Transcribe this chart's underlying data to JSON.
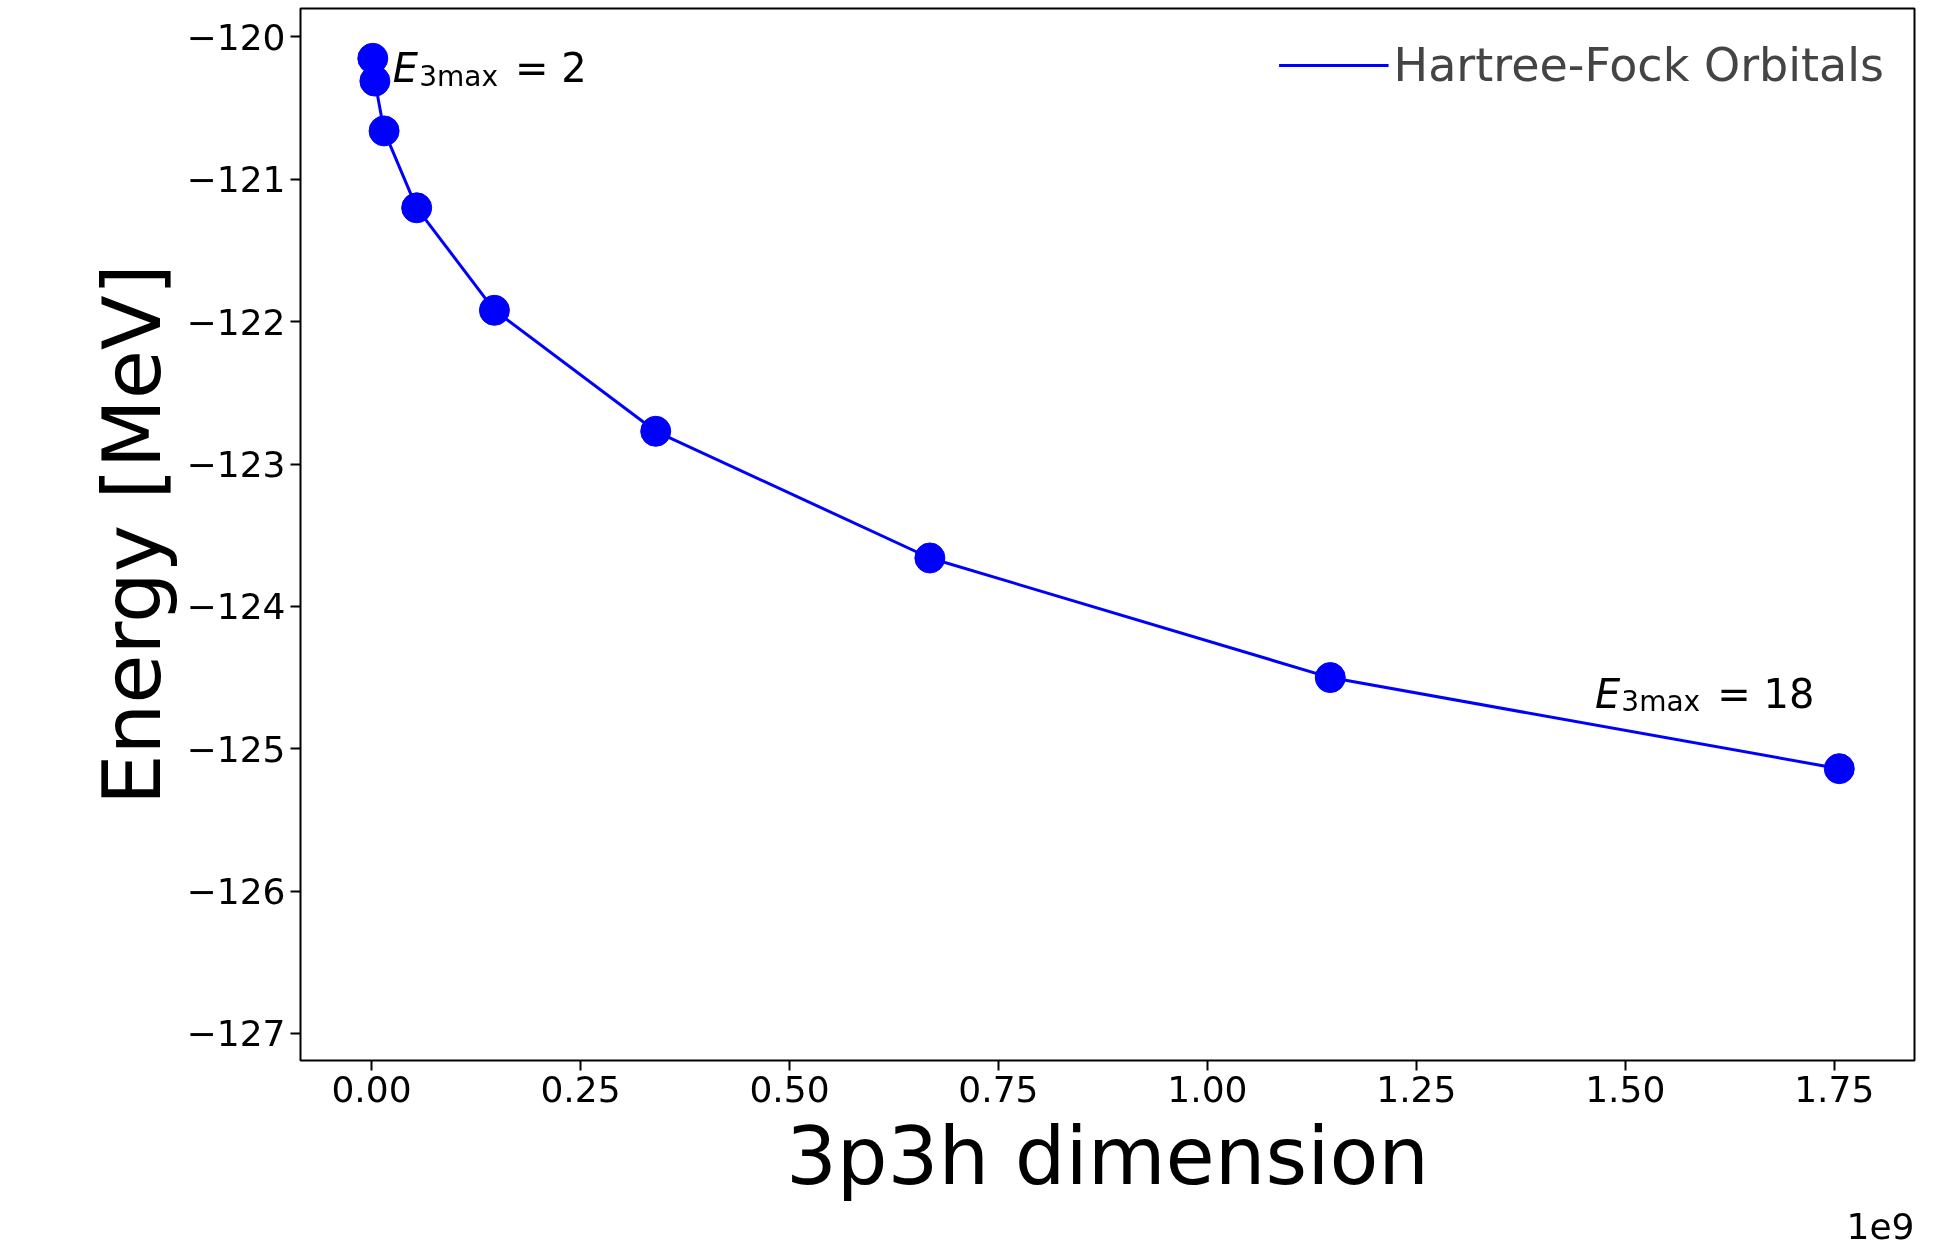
{
  "chart_data": {
    "type": "line",
    "xlabel": "3p3h dimension",
    "ylabel": "Energy [MeV]",
    "x": [
      0.0015,
      0.004,
      0.015,
      0.054,
      0.147,
      0.34,
      0.668,
      1.147,
      1.756
    ],
    "series": [
      {
        "name": "Hartree-Fock Orbitals",
        "color": "#0000ff",
        "values": [
          -120.15,
          -120.31,
          -120.66,
          -121.2,
          -121.92,
          -122.77,
          -123.66,
          -124.5,
          -125.14
        ]
      }
    ],
    "xlim": [
      -0.085,
      1.846
    ],
    "ylim": [
      -127.19,
      -119.8
    ],
    "xticks": [
      {
        "value": 0,
        "label": "0.00"
      },
      {
        "value": 0.25,
        "label": "0.25"
      },
      {
        "value": 0.5,
        "label": "0.50"
      },
      {
        "value": 0.75,
        "label": "0.75"
      },
      {
        "value": 1,
        "label": "1.00"
      },
      {
        "value": 1.25,
        "label": "1.25"
      },
      {
        "value": 1.5,
        "label": "1.50"
      },
      {
        "value": 1.75,
        "label": "1.75"
      }
    ],
    "yticks": [
      {
        "value": -120,
        "label": "−120"
      },
      {
        "value": -121,
        "label": "−121"
      },
      {
        "value": -122,
        "label": "−122"
      },
      {
        "value": -123,
        "label": "−123"
      },
      {
        "value": -124,
        "label": "−124"
      },
      {
        "value": -125,
        "label": "−125"
      },
      {
        "value": -126,
        "label": "−126"
      },
      {
        "value": -127,
        "label": "−127"
      }
    ],
    "annotations": [
      {
        "text": "E$_{3max}$ = 2",
        "x": 0.0015,
        "y": -120.15
      },
      {
        "text": "E$_{3max}$ = 18",
        "x": 1.756,
        "y": -125.14
      },
      "1e9"
    ],
    "marker": "circle",
    "line_style": "solid",
    "legend": "top right",
    "grid": false
  }
}
